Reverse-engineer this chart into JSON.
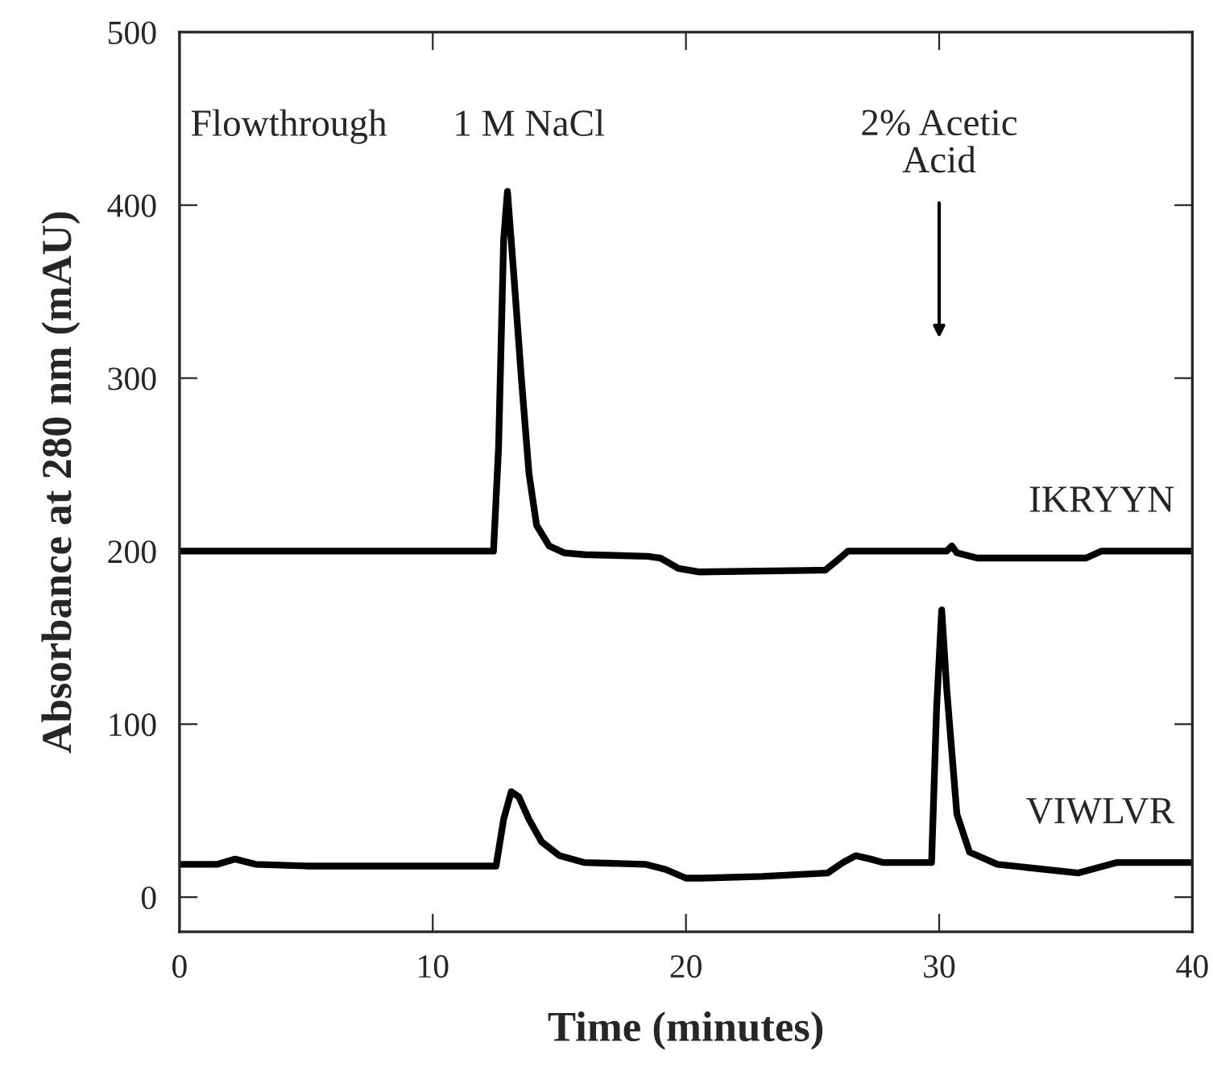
{
  "chart_data": {
    "type": "line",
    "xlabel": "Time (minutes)",
    "ylabel": "Absorbance at 280 nm (mAU)",
    "xlim": [
      0,
      40
    ],
    "xticks": [
      0,
      10,
      20,
      30,
      40
    ],
    "ylim": [
      -20,
      500
    ],
    "yticks": [
      0,
      100,
      200,
      300,
      400,
      500
    ],
    "grid": false,
    "legend": false,
    "marker": "none",
    "line_style": "solid",
    "annotations": [
      "Flowthrough",
      "1 M NaCl",
      "2% Acetic\nAcid"
    ],
    "series": [
      {
        "name": "IKRYYN",
        "color": "#000000",
        "x": [
          0,
          12.4,
          12.6,
          12.8,
          12.95,
          13.2,
          13.5,
          13.8,
          14.1,
          14.6,
          15.2,
          16,
          18.5,
          19,
          19.7,
          20.5,
          25.5,
          26,
          26.4,
          27,
          30.3,
          30.5,
          30.7,
          31.5,
          35.8,
          36.4,
          40
        ],
        "values": [
          200,
          200,
          260,
          380,
          408,
          360,
          300,
          245,
          215,
          203,
          199,
          198,
          197,
          196,
          190,
          188,
          189,
          195,
          200,
          200,
          200,
          203,
          199,
          196,
          196,
          200,
          200
        ]
      },
      {
        "name": "VIWLVR",
        "color": "#000000",
        "x": [
          0,
          1.5,
          2.2,
          3,
          5,
          12.5,
          12.8,
          13.1,
          13.4,
          13.8,
          14.3,
          15,
          16,
          18.4,
          19.2,
          20,
          20.6,
          23,
          25.6,
          26.2,
          26.7,
          27.3,
          27.8,
          29.7,
          29.9,
          30.1,
          30.3,
          30.7,
          31.2,
          32.3,
          35.5,
          37,
          40
        ],
        "values": [
          19,
          19,
          22,
          19,
          18,
          18,
          45,
          61,
          58,
          45,
          32,
          24,
          20,
          19,
          16,
          11,
          11,
          12,
          14,
          20,
          24,
          22,
          20,
          20,
          110,
          166,
          120,
          48,
          26,
          19,
          14,
          20,
          20
        ]
      }
    ]
  }
}
